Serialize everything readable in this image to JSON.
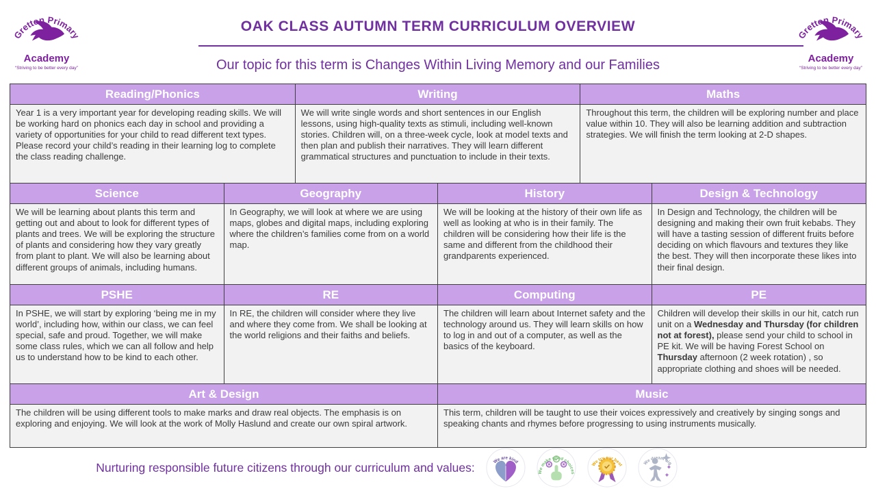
{
  "header": {
    "title": "OAK CLASS AUTUMN TERM CURRICULUM OVERVIEW",
    "topic": "Our topic for this term is Changes Within Living Memory and our Families"
  },
  "logo": {
    "name_arc": "Gretton Primary",
    "name_sub": "Academy",
    "tagline": "“Striving to be better every day”"
  },
  "colors": {
    "accent_purple": "#7030a0",
    "logo_purple": "#7d219e",
    "table_header_bg": "#c9a1e9",
    "table_header_text": "#ffffff",
    "cell_bg": "#f2f2f2",
    "cell_text": "#3a3a3a",
    "border": "#3f3f3f"
  },
  "sections": [
    {
      "columns": 3,
      "items": [
        {
          "title": "Reading/Phonics",
          "body": "Year 1 is a very important year for developing reading skills. We will be working hard on phonics each day in school and providing a variety of opportunities for your child to read different text types.  Please record your child’s reading in their learning log to complete the class reading challenge."
        },
        {
          "title": "Writing",
          "body": "We will write single words and short sentences in our English lessons, using high-quality texts as stimuli, including well-known stories. Children will, on a three-week cycle, look at model texts and then plan and publish their narratives. They will learn different grammatical structures and punctuation to include in their texts."
        },
        {
          "title": "Maths",
          "body": "Throughout this term, the children will be exploring number and place value within 10.  They will also be learning addition and subtraction strategies. We will finish the term looking at 2-D shapes."
        }
      ]
    },
    {
      "columns": 4,
      "items": [
        {
          "title": "Science",
          "body": "We will be learning about plants this term and getting out and about to look for different types of plants and trees. We will be exploring the structure of plants and considering how they vary greatly from plant to plant.  We will also be learning about different groups of animals, including humans."
        },
        {
          "title": "Geography",
          "body": "In Geography, we will look at where we are using maps, globes and digital maps, including exploring where the children’s families come from on a world map."
        },
        {
          "title": "History",
          "body": "We will be looking at the history of their own life as well as looking at who is in their family. The children will be considering how their life is the same and different from the childhood their grandparents experienced."
        },
        {
          "title": "Design & Technology",
          "body": "In Design and Technology, the children will be designing and making their own fruit kebabs. They will have a tasting session of different fruits before deciding on which flavours and textures they like the best. They will then incorporate these likes into their final design."
        }
      ]
    },
    {
      "columns": 4,
      "items": [
        {
          "title": "PSHE",
          "body": "In PSHE, we will start by exploring ‘being me in my world’, including how, within our class, we can feel special, safe and proud. Together, we will make some class rules, which we can all follow and help us to understand how to be kind to each other."
        },
        {
          "title": "RE",
          "body": "In RE, the children will consider where they live and where they come from.  We shall be looking at the world religions and their faiths and beliefs."
        },
        {
          "title": "Computing",
          "body": "The children will learn about Internet safety and the technology around us. They will learn skills on how to log in and out of a computer, as well as the basics of the keyboard."
        },
        {
          "title": "PE",
          "body_segments": [
            {
              "t": "Children will develop their skills in our hit, catch run unit on a ",
              "b": false
            },
            {
              "t": "Wednesday and Thursday (for children not at forest),",
              "b": true
            },
            {
              "t": " please send your child to school in PE kit. We will be having Forest School on ",
              "b": false
            },
            {
              "t": "Thursday",
              "b": true
            },
            {
              "t": " afternoon (2 week rotation) , so appropriate clothing and shoes will be needed.",
              "b": false
            }
          ]
        }
      ]
    },
    {
      "columns": 2,
      "items": [
        {
          "title": "Art & Design",
          "body": "The children will be using different tools to make marks and draw real objects. The emphasis is on exploring and enjoying.  We will look at the work of Molly Haslund and create our own spiral artwork."
        },
        {
          "title": "Music",
          "body": "This term, children will be taught to use their voices expressively and creatively by singing songs and speaking chants and rhymes before progressing to using instruments musically."
        }
      ]
    }
  ],
  "footer": {
    "text": "Nurturing responsible future citizens through our curriculum and values:",
    "values": [
      {
        "label": "We are kind",
        "icon": "heart-hands-icon",
        "color": "#6b4fa0"
      },
      {
        "label": "We make good choices",
        "icon": "pointing-hand-icon",
        "color": "#72bd72"
      },
      {
        "label": "We try our best",
        "icon": "rosette-medal-icon",
        "color": "#e9a300"
      },
      {
        "label": "We dream big",
        "icon": "star-child-icon",
        "color": "#9aa2b5"
      }
    ]
  }
}
